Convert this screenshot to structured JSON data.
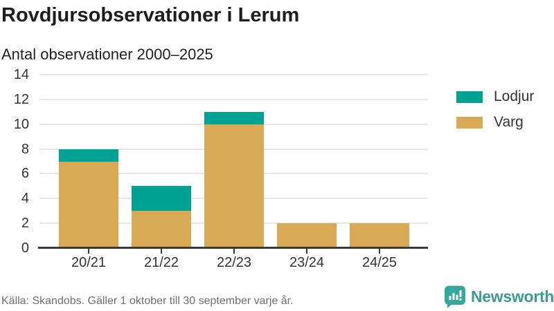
{
  "header": {
    "title": "Rovdjursobservationer i Lerum",
    "subtitle": "Antal observationer 2000–2025"
  },
  "chart_data": {
    "type": "bar",
    "stacked": true,
    "title": "Rovdjursobservationer i Lerum",
    "subtitle": "Antal observationer 2000–2025",
    "categories": [
      "20/21",
      "21/22",
      "22/23",
      "23/24",
      "24/25"
    ],
    "series": [
      {
        "name": "Lodjur",
        "color": "#00a294",
        "values": [
          1,
          2,
          1,
          0,
          0
        ]
      },
      {
        "name": "Varg",
        "color": "#d9aa55",
        "values": [
          7,
          3,
          10,
          2,
          2
        ]
      }
    ],
    "stack_bottom_to_top": [
      "Varg",
      "Lodjur"
    ],
    "totals": [
      8,
      5,
      11,
      2,
      2
    ],
    "xlabel": "",
    "ylabel": "",
    "ylim": [
      0,
      14
    ],
    "yticks": [
      0,
      2,
      4,
      6,
      8,
      10,
      12,
      14
    ],
    "grid": true,
    "legend_position": "right"
  },
  "footer": {
    "source": "Källa: Skandobs. Gäller 1 oktober till 30 september varje år."
  },
  "brand": {
    "name": "Newsworthy",
    "color": "#3e9b94",
    "icon": "bar-chart-speech-bubble-icon",
    "icon_color": "#35a79b"
  }
}
